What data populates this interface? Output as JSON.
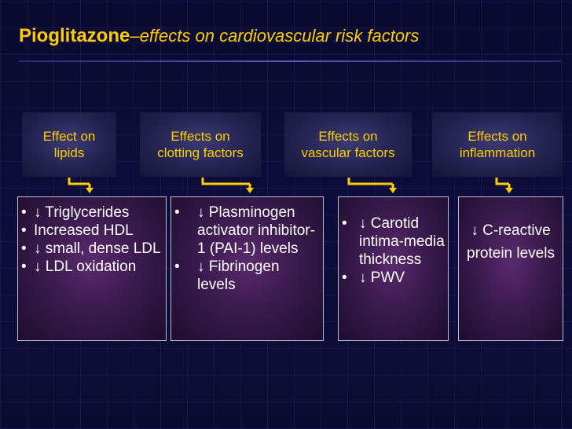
{
  "title": {
    "drug": "Pioglitazone",
    "rest": "–effects on cardiovascular risk factors"
  },
  "categories": [
    {
      "label_lines": [
        "Effect on",
        "lipids"
      ]
    },
    {
      "label_lines": [
        "Effects on",
        "clotting factors"
      ]
    },
    {
      "label_lines": [
        "Effects on",
        "vascular factors"
      ]
    },
    {
      "label_lines": [
        "Effects on",
        "inflammation"
      ]
    }
  ],
  "effects": [
    {
      "items": [
        "↓ Triglycerides",
        "Increased HDL",
        "↓ small, dense LDL",
        "↓ LDL oxidation"
      ]
    },
    {
      "items": [
        "↓ Plasminogen activator inhibitor-1 (PAI-1) levels",
        "↓ Fibrinogen levels"
      ]
    },
    {
      "items": [
        "↓ Carotid intima-media thickness",
        "↓ PWV"
      ]
    },
    {
      "text": "↓ C-reactive protein levels"
    }
  ],
  "colors": {
    "title": "#ffcc00",
    "header_text": "#ffcc00",
    "body_text": "#ffffff",
    "connector": "#ffcc00",
    "background": "#07072a"
  }
}
